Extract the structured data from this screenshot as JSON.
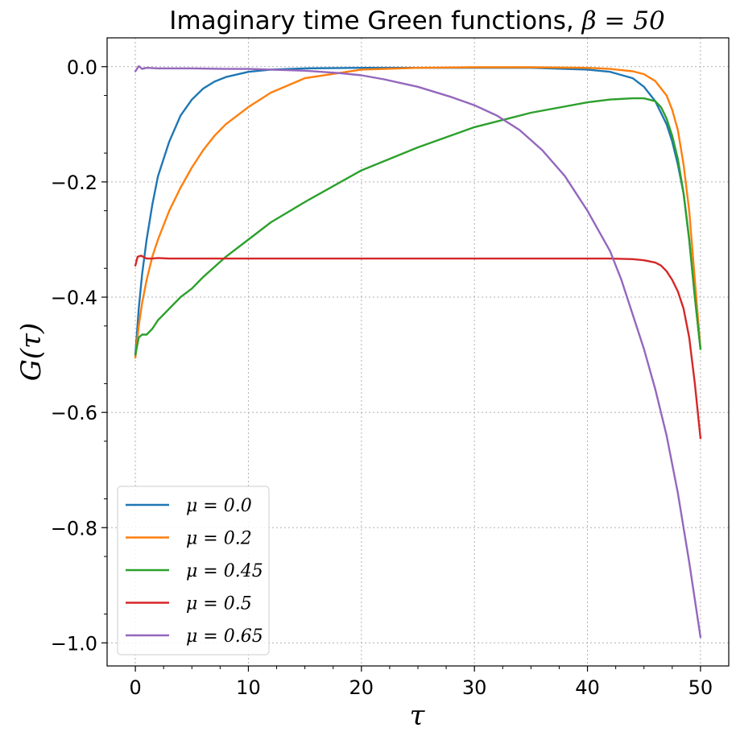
{
  "chart_data": {
    "type": "line",
    "title": "Imaginary time Green functions, ",
    "title_math": "β = 50",
    "xlabel": "τ",
    "ylabel": "G(τ)",
    "xlim": [
      -2.5,
      52.5
    ],
    "ylim": [
      -1.04,
      0.05
    ],
    "xticks": [
      0,
      10,
      20,
      30,
      40,
      50
    ],
    "xtick_labels": [
      "0",
      "10",
      "20",
      "30",
      "40",
      "50"
    ],
    "yticks": [
      0.0,
      -0.2,
      -0.4,
      -0.6,
      -0.8,
      -1.0
    ],
    "ytick_labels": [
      "0.0",
      "−0.2",
      "−0.4",
      "−0.6",
      "−0.8",
      "−1.0"
    ],
    "grid": true,
    "legend_position": "lower-left",
    "series": [
      {
        "name": "μ = 0.0",
        "color": "#1f77b4",
        "x": [
          0,
          0.3,
          0.6,
          1,
          1.5,
          2,
          3,
          4,
          5,
          6,
          7,
          8,
          10,
          12,
          15,
          20,
          25,
          30,
          35,
          40,
          42,
          44,
          45,
          46,
          47,
          47.5,
          48,
          48.5,
          49,
          49.5,
          50
        ],
        "y": [
          -0.5,
          -0.42,
          -0.36,
          -0.3,
          -0.24,
          -0.19,
          -0.13,
          -0.085,
          -0.057,
          -0.038,
          -0.026,
          -0.018,
          -0.009,
          -0.005,
          -0.003,
          -0.002,
          -0.002,
          -0.002,
          -0.002,
          -0.005,
          -0.009,
          -0.02,
          -0.035,
          -0.06,
          -0.1,
          -0.13,
          -0.17,
          -0.22,
          -0.3,
          -0.4,
          -0.49
        ]
      },
      {
        "name": "μ = 0.2",
        "color": "#ff7f0e",
        "x": [
          0,
          0.3,
          0.6,
          1,
          1.5,
          2,
          3,
          4,
          5,
          6,
          7,
          8,
          10,
          12,
          15,
          20,
          25,
          30,
          35,
          40,
          42,
          44,
          45,
          46,
          47,
          47.5,
          48,
          48.5,
          49,
          49.5,
          50
        ],
        "y": [
          -0.505,
          -0.45,
          -0.41,
          -0.37,
          -0.33,
          -0.3,
          -0.25,
          -0.21,
          -0.175,
          -0.145,
          -0.12,
          -0.1,
          -0.07,
          -0.045,
          -0.02,
          -0.005,
          -0.002,
          -0.001,
          -0.001,
          -0.002,
          -0.004,
          -0.008,
          -0.013,
          -0.025,
          -0.05,
          -0.075,
          -0.11,
          -0.17,
          -0.25,
          -0.37,
          -0.49
        ]
      },
      {
        "name": "μ = 0.45",
        "color": "#2ca02c",
        "x": [
          0,
          0.3,
          0.6,
          1,
          1.5,
          2,
          3,
          4,
          5,
          6,
          8,
          10,
          12,
          15,
          20,
          25,
          30,
          35,
          40,
          42,
          44,
          45,
          46,
          46.5,
          47,
          47.5,
          48,
          48.5,
          49,
          49.5,
          50
        ],
        "y": [
          -0.5,
          -0.47,
          -0.465,
          -0.465,
          -0.455,
          -0.44,
          -0.42,
          -0.4,
          -0.385,
          -0.365,
          -0.33,
          -0.3,
          -0.27,
          -0.235,
          -0.18,
          -0.14,
          -0.105,
          -0.08,
          -0.062,
          -0.057,
          -0.055,
          -0.055,
          -0.06,
          -0.07,
          -0.09,
          -0.12,
          -0.16,
          -0.22,
          -0.3,
          -0.4,
          -0.49
        ]
      },
      {
        "name": "μ = 0.5",
        "color": "#d62728",
        "x": [
          0,
          0.2,
          0.5,
          1,
          1.5,
          2,
          3,
          5,
          10,
          20,
          30,
          40,
          42,
          44,
          45,
          46,
          46.5,
          47,
          47.5,
          48,
          48.5,
          49,
          49.5,
          50
        ],
        "y": [
          -0.345,
          -0.33,
          -0.328,
          -0.333,
          -0.333,
          -0.332,
          -0.333,
          -0.333,
          -0.333,
          -0.333,
          -0.333,
          -0.333,
          -0.333,
          -0.334,
          -0.336,
          -0.34,
          -0.345,
          -0.355,
          -0.37,
          -0.39,
          -0.42,
          -0.47,
          -0.55,
          -0.645
        ]
      },
      {
        "name": "μ = 0.65",
        "color": "#9467bd",
        "x": [
          0,
          0.3,
          0.6,
          1,
          2,
          3,
          5,
          8,
          10,
          12,
          15,
          18,
          20,
          22,
          25,
          28,
          30,
          32,
          34,
          36,
          38,
          40,
          42,
          43,
          44,
          45,
          46,
          47,
          48,
          49,
          50
        ],
        "y": [
          -0.008,
          0.001,
          -0.004,
          -0.002,
          -0.003,
          -0.003,
          -0.003,
          -0.004,
          -0.004,
          -0.005,
          -0.007,
          -0.011,
          -0.015,
          -0.022,
          -0.035,
          -0.053,
          -0.067,
          -0.085,
          -0.11,
          -0.145,
          -0.19,
          -0.25,
          -0.32,
          -0.37,
          -0.43,
          -0.49,
          -0.56,
          -0.64,
          -0.74,
          -0.86,
          -0.99
        ]
      }
    ]
  }
}
